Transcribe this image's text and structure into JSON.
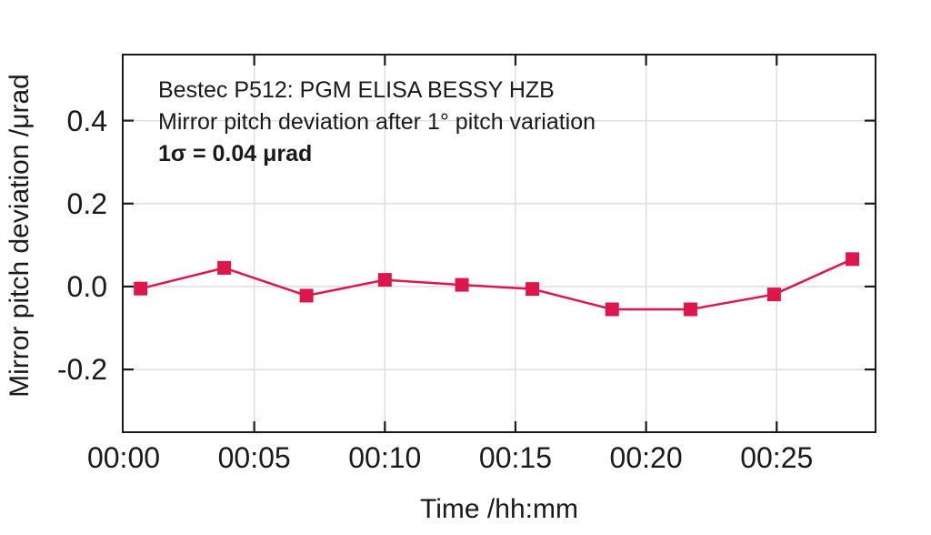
{
  "figure": {
    "background": "#ffffff",
    "text_color": "#1a1a1a",
    "border_color": "#1a1a1a",
    "grid_color": "#dedede",
    "accent_color": "#dd164b"
  },
  "chart_data": {
    "type": "line",
    "title": "Bestec P512: PGM ELISA BESSY HZB",
    "subtitle": "Mirror pitch deviation after 1° pitch variation",
    "sigma_label": "1σ = 0.04 μrad",
    "xlabel": "Time /hh:mm",
    "ylabel": "Mirror pitch deviation /μrad",
    "grid": true,
    "legend": false,
    "marker": "square",
    "marker_size": 15,
    "line_width": 2.5,
    "xlim_minutes": [
      0,
      28.75
    ],
    "ylim": [
      -0.349,
      0.557
    ],
    "x_ticks": {
      "minutes": [
        0,
        5,
        10,
        15,
        20,
        25
      ],
      "labels": [
        "00:00",
        "00:05",
        "00:10",
        "00:15",
        "00:20",
        "00:25"
      ]
    },
    "y_ticks": {
      "values": [
        0.4,
        0.2,
        0.0,
        -0.2
      ],
      "labels": [
        "0.4",
        "0.2",
        "0.0",
        "-0.2"
      ]
    },
    "series": [
      {
        "name": "mirror-pitch-deviation",
        "x_minutes": [
          0.65,
          3.85,
          7.0,
          10.0,
          12.95,
          15.65,
          18.7,
          21.7,
          24.9,
          27.9
        ],
        "values": [
          -0.005,
          0.045,
          -0.022,
          0.016,
          0.004,
          -0.006,
          -0.055,
          -0.055,
          -0.019,
          0.066
        ]
      }
    ]
  }
}
